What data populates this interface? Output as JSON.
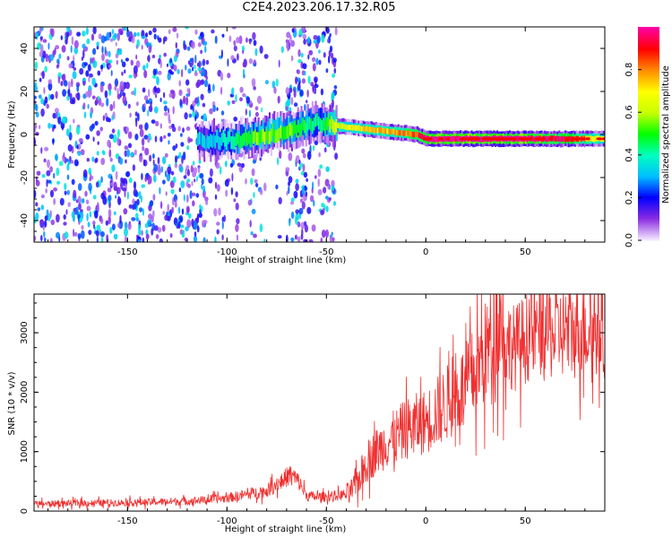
{
  "title": "C2E4.2023.206.17.32.R05",
  "chart_data": [
    {
      "type": "heatmap",
      "xlabel": "Height of straight line (km)",
      "ylabel": "Frequency (Hz)",
      "xlim": [
        -197,
        90
      ],
      "ylim": [
        -50,
        50
      ],
      "x_ticks": [
        -150,
        -100,
        -50,
        0,
        50
      ],
      "y_ticks": [
        -40,
        -20,
        0,
        20,
        40
      ],
      "colorbar": {
        "label": "Normalized spectral amplitude",
        "range": [
          0,
          1
        ],
        "ticks": [
          0.0,
          0.2,
          0.4,
          0.6,
          0.8
        ],
        "colors": [
          "#f4e8ff",
          "#8a2be2",
          "#0000ff",
          "#00bfff",
          "#00ffc0",
          "#00ff00",
          "#c8ff00",
          "#ffff00",
          "#ff8c00",
          "#ff0000",
          "#ff00a0"
        ]
      },
      "ridge": {
        "x": [
          -110,
          -95,
          -80,
          -65,
          -55,
          -45,
          -35,
          -25,
          -15,
          -5,
          0,
          10,
          30,
          50,
          70,
          90
        ],
        "freq_hz": [
          -3,
          -2,
          0,
          3,
          6,
          4,
          3,
          2,
          1,
          0,
          -2,
          -2,
          -2,
          -2,
          -2,
          -2
        ],
        "amplitude": [
          0.3,
          0.45,
          0.55,
          0.5,
          0.4,
          0.6,
          0.65,
          0.7,
          0.75,
          0.8,
          0.95,
          0.95,
          0.95,
          0.95,
          0.9,
          0.6
        ]
      },
      "noise_segments": [
        {
          "x_range": [
            -197,
            -110
          ],
          "level": "dense"
        },
        {
          "x_range": [
            -110,
            -85
          ],
          "level": "medium"
        },
        {
          "x_range": [
            -85,
            -70
          ],
          "level": "sparse"
        },
        {
          "x_range": [
            -70,
            -45
          ],
          "level": "dense"
        },
        {
          "x_range": [
            -45,
            90
          ],
          "level": "none"
        }
      ]
    },
    {
      "type": "line",
      "xlabel": "Height of straight line (km)",
      "ylabel": "SNR (10 * v/v)",
      "xlim": [
        -197,
        90
      ],
      "ylim": [
        0,
        3650
      ],
      "x_ticks": [
        -150,
        -100,
        -50,
        0,
        50
      ],
      "y_ticks": [
        0,
        1000,
        2000,
        3000
      ],
      "color": "#f03030",
      "series": [
        {
          "x": [
            -197,
            -180,
            -160,
            -140,
            -120,
            -110,
            -100,
            -90,
            -80,
            -72,
            -68,
            -64,
            -60,
            -55,
            -50,
            -45,
            -40,
            -37,
            -34,
            -30,
            -25,
            -20,
            -15,
            -10,
            -5,
            0,
            5,
            10,
            15,
            20,
            25,
            30,
            34,
            36,
            38,
            40,
            45,
            50,
            55,
            60,
            65,
            70,
            75,
            80,
            85,
            90
          ],
          "y": [
            120,
            130,
            140,
            150,
            170,
            190,
            220,
            280,
            340,
            520,
            620,
            500,
            260,
            240,
            240,
            260,
            280,
            360,
            520,
            800,
            1000,
            1150,
            1250,
            1380,
            1450,
            1500,
            1650,
            1800,
            1950,
            2100,
            2350,
            2650,
            3000,
            3400,
            3300,
            2850,
            2750,
            2900,
            3000,
            3050,
            2950,
            3050,
            3000,
            3100,
            3050,
            3000
          ]
        }
      ]
    }
  ]
}
